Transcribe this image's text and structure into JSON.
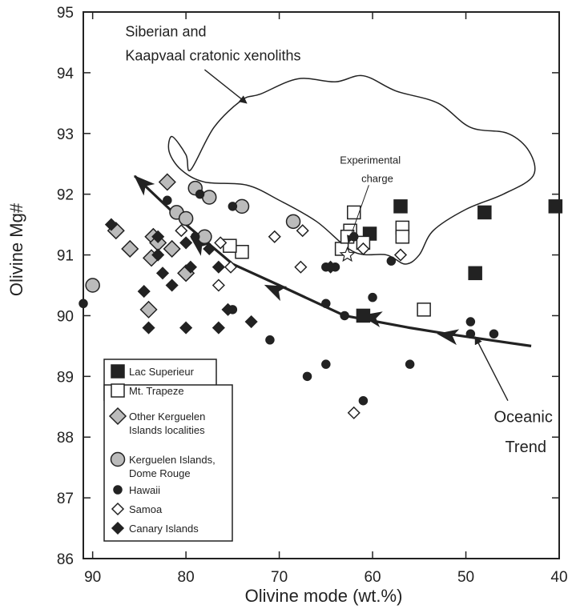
{
  "chart_data": {
    "type": "scatter",
    "xlabel": "Olivine mode (wt.%)",
    "ylabel": "Olivine Mg#",
    "xlim": [
      91,
      40
    ],
    "ylim": [
      86,
      95
    ],
    "x_reversed": true,
    "grid": false,
    "legend_position": "bottom-left",
    "xticks": [
      "90",
      "80",
      "70",
      "60",
      "50",
      "40"
    ],
    "yticks": [
      "86",
      "87",
      "88",
      "89",
      "90",
      "91",
      "92",
      "93",
      "94",
      "95"
    ],
    "series": [
      {
        "name": "Lac Superieur",
        "marker": "square",
        "color": "#222222",
        "points": [
          [
            57,
            91.8
          ],
          [
            48,
            91.7
          ],
          [
            40.4,
            91.8
          ],
          [
            60.3,
            91.35
          ],
          [
            49,
            90.7
          ],
          [
            61,
            90
          ]
        ]
      },
      {
        "name": "Mt. Trapeze",
        "marker": "square-open",
        "color": "#ffffff",
        "points": [
          [
            62,
            91.7
          ],
          [
            62.4,
            91.4
          ],
          [
            61,
            91.2
          ],
          [
            63.3,
            91.1
          ],
          [
            62.7,
            91.3
          ],
          [
            56.8,
            91.45
          ],
          [
            56.8,
            91.3
          ],
          [
            74,
            91.05
          ],
          [
            75.3,
            91.15
          ],
          [
            54.5,
            90.1
          ]
        ]
      },
      {
        "name": "Other Kerguelen\nIslands localities",
        "marker": "diamond",
        "color": "#bbbbbb",
        "points": [
          [
            82,
            92.2
          ],
          [
            87.5,
            91.4
          ],
          [
            86,
            91.1
          ],
          [
            83.5,
            91.3
          ],
          [
            83,
            91.2
          ],
          [
            81.5,
            91.1
          ],
          [
            80,
            90.7
          ],
          [
            83.7,
            90.95
          ],
          [
            84,
            90.1
          ]
        ]
      },
      {
        "name": "Kerguelen Islands,\nDome Rouge",
        "marker": "circle",
        "color": "#bbbbbb",
        "points": [
          [
            90,
            90.5
          ],
          [
            81,
            91.7
          ],
          [
            80,
            91.6
          ],
          [
            79,
            92.1
          ],
          [
            77.5,
            91.95
          ],
          [
            74,
            91.8
          ],
          [
            78,
            91.3
          ],
          [
            68.5,
            91.55
          ]
        ]
      },
      {
        "name": "Hawaii",
        "marker": "circle-small",
        "color": "#222222",
        "points": [
          [
            91,
            90.2
          ],
          [
            82,
            91.9
          ],
          [
            78.5,
            92
          ],
          [
            75,
            91.8
          ],
          [
            83,
            91
          ],
          [
            79,
            91.3
          ],
          [
            71,
            89.6
          ],
          [
            75,
            90.1
          ],
          [
            65,
            90.2
          ],
          [
            64,
            90.8
          ],
          [
            65,
            90.8
          ],
          [
            63,
            90
          ],
          [
            62,
            91.3
          ],
          [
            60,
            90.3
          ],
          [
            58,
            90.9
          ],
          [
            56,
            89.2
          ],
          [
            49.5,
            89.9
          ],
          [
            49.5,
            89.7
          ],
          [
            47,
            89.7
          ],
          [
            65,
            89.2
          ],
          [
            67,
            89
          ],
          [
            61,
            88.6
          ]
        ]
      },
      {
        "name": "Samoa",
        "marker": "diamond-open",
        "color": "#ffffff",
        "points": [
          [
            80.5,
            91.4
          ],
          [
            76.3,
            91.2
          ],
          [
            75.2,
            90.8
          ],
          [
            70.5,
            91.3
          ],
          [
            67.5,
            91.4
          ],
          [
            67.7,
            90.8
          ],
          [
            61,
            91.1
          ],
          [
            57,
            91
          ],
          [
            62,
            88.4
          ],
          [
            76.5,
            90.5
          ]
        ]
      },
      {
        "name": "Canary Islands",
        "marker": "diamond-small",
        "color": "#222222",
        "points": [
          [
            88,
            91.5
          ],
          [
            83,
            91.3
          ],
          [
            83,
            91
          ],
          [
            80,
            91.2
          ],
          [
            77.5,
            91.1
          ],
          [
            76.5,
            90.8
          ],
          [
            79.5,
            90.8
          ],
          [
            82.5,
            90.7
          ],
          [
            84.5,
            90.4
          ],
          [
            81.5,
            90.5
          ],
          [
            75.5,
            90.1
          ],
          [
            84,
            89.8
          ],
          [
            80,
            89.8
          ],
          [
            76.5,
            89.8
          ],
          [
            73,
            89.9
          ],
          [
            64.5,
            90.8
          ]
        ]
      }
    ],
    "experimental_charge": [
      62.7,
      91.0
    ],
    "cratonic_field": [
      [
        79.5,
        92.4
      ],
      [
        77,
        93.1
      ],
      [
        74,
        93.55
      ],
      [
        72,
        93.65
      ],
      [
        68,
        93.9
      ],
      [
        64,
        93.85
      ],
      [
        61,
        93.95
      ],
      [
        57.5,
        93.7
      ],
      [
        53,
        93.5
      ],
      [
        49.5,
        93.1
      ],
      [
        45.5,
        93
      ],
      [
        43.2,
        92.7
      ],
      [
        42.8,
        92.3
      ],
      [
        46,
        92
      ],
      [
        50,
        91.75
      ],
      [
        53.5,
        91.4
      ],
      [
        55,
        91
      ],
      [
        56.5,
        90.85
      ],
      [
        58.5,
        91
      ],
      [
        62,
        91.05
      ],
      [
        66,
        91.55
      ],
      [
        70,
        91.9
      ],
      [
        73.5,
        92.15
      ],
      [
        78,
        92.2
      ],
      [
        80.5,
        92.4
      ],
      [
        81.8,
        92.7
      ],
      [
        81.5,
        92.95
      ],
      [
        80,
        92.65
      ]
    ],
    "oceanic_trend_line": [
      [
        43,
        89.5
      ],
      [
        52,
        89.7
      ],
      [
        56,
        89.8
      ],
      [
        63,
        90
      ],
      [
        70,
        90.5
      ],
      [
        75,
        90.85
      ],
      [
        80,
        91.5
      ],
      [
        85.5,
        92.3
      ]
    ],
    "oceanic_trend_arrow_tips": [
      [
        53,
        89.7
      ],
      [
        61.2,
        90
      ],
      [
        71.5,
        90.5
      ],
      [
        79.5,
        91.3
      ],
      [
        85.5,
        92.3
      ]
    ],
    "annotations": [
      {
        "id": "xenolith-label-line1",
        "text": "Siberian and",
        "at": [
          86.5,
          94.6
        ],
        "size": 18
      },
      {
        "id": "xenolith-label-line2",
        "text": "Kaapvaal cratonic xenoliths",
        "at": [
          86.5,
          94.2
        ],
        "size": 18
      },
      {
        "id": "experimental-label-line1",
        "text": "Experimental",
        "at": [
          63.5,
          92.5
        ],
        "size": 13
      },
      {
        "id": "experimental-label-line2",
        "text": "charge",
        "at": [
          61.2,
          92.2
        ],
        "size": 13
      },
      {
        "id": "oceanic-label-line1",
        "text": "Oceanic",
        "at": [
          47,
          88.25
        ],
        "size": 20
      },
      {
        "id": "oceanic-label-line2",
        "text": "Trend",
        "at": [
          45.8,
          87.75
        ],
        "size": 20
      }
    ]
  }
}
